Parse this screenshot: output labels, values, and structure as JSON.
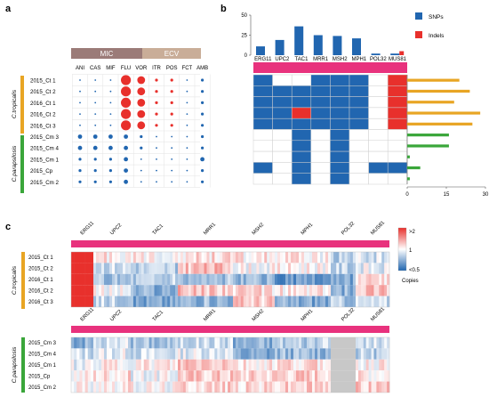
{
  "panel_labels": {
    "a": "a",
    "b": "b",
    "c": "c"
  },
  "colors": {
    "mic_header": "#9b7b78",
    "ecv_header": "#c9ad98",
    "tropicalis": "#e8a524",
    "parapsilosis": "#3aa63a",
    "snp": "#2166b0",
    "indel": "#e8302c",
    "gene_bar": "#e8327d",
    "heat_high": "#e8302c",
    "heat_mid": "#ffffff",
    "heat_low": "#2166b0",
    "missing": "#c8c8c8"
  },
  "panel_a": {
    "header_mic": "MIC",
    "header_ecv": "ECV",
    "drugs": [
      "ANI",
      "CAS",
      "MIF",
      "FLU",
      "VOR",
      "ITR",
      "POS",
      "FCT",
      "AMB"
    ],
    "species": [
      "C.tropicalis",
      "C.parapsilosis"
    ],
    "samples": [
      "2015_Ct 1",
      "2015_Ct 2",
      "2016_Ct 1",
      "2016_Ct 2",
      "2016_Ct 3",
      "2015_Cm 3",
      "2015_Cm 4",
      "2015_Cm 1",
      "2015_Cp",
      "2015_Cm 2"
    ],
    "dots": [
      [
        [
          1,
          "b"
        ],
        [
          1,
          "b"
        ],
        [
          1,
          "b"
        ],
        [
          6,
          "r"
        ],
        [
          5,
          "r"
        ],
        [
          2,
          "r"
        ],
        [
          2,
          "r"
        ],
        [
          1,
          "b"
        ],
        [
          2,
          "b"
        ]
      ],
      [
        [
          1,
          "b"
        ],
        [
          1,
          "b"
        ],
        [
          1,
          "b"
        ],
        [
          6,
          "r"
        ],
        [
          5,
          "r"
        ],
        [
          2,
          "r"
        ],
        [
          2,
          "r"
        ],
        [
          1,
          "b"
        ],
        [
          2,
          "b"
        ]
      ],
      [
        [
          1,
          "b"
        ],
        [
          1,
          "b"
        ],
        [
          1,
          "b"
        ],
        [
          6,
          "r"
        ],
        [
          5,
          "r"
        ],
        [
          2,
          "r"
        ],
        [
          2,
          "r"
        ],
        [
          1,
          "b"
        ],
        [
          2,
          "b"
        ]
      ],
      [
        [
          1,
          "b"
        ],
        [
          1,
          "b"
        ],
        [
          1,
          "b"
        ],
        [
          6,
          "r"
        ],
        [
          5,
          "r"
        ],
        [
          2,
          "r"
        ],
        [
          2,
          "r"
        ],
        [
          1,
          "b"
        ],
        [
          2,
          "b"
        ]
      ],
      [
        [
          1,
          "b"
        ],
        [
          1,
          "b"
        ],
        [
          1,
          "b"
        ],
        [
          6,
          "r"
        ],
        [
          5,
          "r"
        ],
        [
          2,
          "r"
        ],
        [
          2,
          "r"
        ],
        [
          1,
          "b"
        ],
        [
          2,
          "b"
        ]
      ],
      [
        [
          3,
          "b"
        ],
        [
          3,
          "b"
        ],
        [
          3,
          "b"
        ],
        [
          3,
          "b"
        ],
        [
          2,
          "b"
        ],
        [
          1,
          "b"
        ],
        [
          1,
          "b"
        ],
        [
          1,
          "b"
        ],
        [
          2,
          "b"
        ]
      ],
      [
        [
          3,
          "b"
        ],
        [
          3,
          "b"
        ],
        [
          3,
          "b"
        ],
        [
          3,
          "b"
        ],
        [
          2,
          "b"
        ],
        [
          1,
          "b"
        ],
        [
          1,
          "b"
        ],
        [
          1,
          "b"
        ],
        [
          2,
          "b"
        ]
      ],
      [
        [
          2,
          "b"
        ],
        [
          2,
          "b"
        ],
        [
          2,
          "b"
        ],
        [
          3,
          "b"
        ],
        [
          1,
          "b"
        ],
        [
          1,
          "b"
        ],
        [
          1,
          "b"
        ],
        [
          1,
          "b"
        ],
        [
          3,
          "b"
        ]
      ],
      [
        [
          2,
          "b"
        ],
        [
          2,
          "b"
        ],
        [
          2,
          "b"
        ],
        [
          3,
          "b"
        ],
        [
          1,
          "b"
        ],
        [
          1,
          "b"
        ],
        [
          1,
          "b"
        ],
        [
          1,
          "b"
        ],
        [
          2,
          "b"
        ]
      ],
      [
        [
          2,
          "b"
        ],
        [
          2,
          "b"
        ],
        [
          2,
          "b"
        ],
        [
          3,
          "b"
        ],
        [
          1,
          "b"
        ],
        [
          1,
          "b"
        ],
        [
          1,
          "b"
        ],
        [
          1,
          "b"
        ],
        [
          2,
          "b"
        ]
      ]
    ]
  },
  "panel_b": {
    "genes": [
      "ERG11",
      "UPC2",
      "TAC1",
      "MRR1",
      "MSH2",
      "MPH1",
      "POL32",
      "MUS81"
    ],
    "legend": {
      "snps": "SNPs",
      "indels": "Indels"
    },
    "y_ticks": [
      "0",
      "25",
      "50"
    ],
    "x_ticks": [
      "0",
      "15",
      "30"
    ],
    "grid": [
      [
        "S",
        "_",
        "_",
        "S",
        "S",
        "S",
        "_",
        "I"
      ],
      [
        "S",
        "S",
        "S",
        "S",
        "S",
        "S",
        "_",
        "I"
      ],
      [
        "S",
        "S",
        "S",
        "S",
        "S",
        "S",
        "_",
        "I"
      ],
      [
        "S",
        "S",
        "I",
        "S",
        "S",
        "S",
        "_",
        "I"
      ],
      [
        "S",
        "S",
        "S",
        "S",
        "S",
        "S",
        "_",
        "I"
      ],
      [
        "_",
        "_",
        "S",
        "_",
        "S",
        "_",
        "_",
        "_"
      ],
      [
        "_",
        "_",
        "S",
        "_",
        "S",
        "_",
        "_",
        "_"
      ],
      [
        "_",
        "_",
        "S",
        "_",
        "S",
        "_",
        "_",
        "_"
      ],
      [
        "S",
        "_",
        "S",
        "_",
        "S",
        "_",
        "S",
        "S"
      ],
      [
        "_",
        "_",
        "S",
        "_",
        "S",
        "_",
        "_",
        "_"
      ]
    ]
  },
  "chart_data": [
    {
      "type": "bar",
      "title": "",
      "categories": [
        "ERG11",
        "UPC2",
        "TAC1",
        "MRR1",
        "MSH2",
        "MPH1",
        "POL32",
        "MUS81"
      ],
      "series": [
        {
          "name": "SNPs",
          "values": [
            11,
            19,
            36,
            25,
            24,
            21,
            2,
            2
          ]
        },
        {
          "name": "Indels",
          "values": [
            0,
            0,
            0,
            0,
            0,
            0,
            0,
            5
          ]
        }
      ],
      "ylim": [
        0,
        50
      ]
    },
    {
      "type": "bar",
      "title": "",
      "categories": [
        "2015_Ct 1",
        "2015_Ct 2",
        "2016_Ct 1",
        "2016_Ct 2",
        "2016_Ct 3",
        "2015_Cm 3",
        "2015_Cm 4",
        "2015_Cm 1",
        "2015_Cp",
        "2015_Cm 2"
      ],
      "values": [
        20,
        24,
        18,
        28,
        25,
        16,
        16,
        1,
        5,
        1
      ],
      "xlim": [
        0,
        30
      ]
    }
  ],
  "panel_c": {
    "genes": [
      "ERG11",
      "UPC2",
      "TAC1",
      "MRR1",
      "MSH2",
      "MPH1",
      "POL32",
      "MUS81"
    ],
    "scale_ticks": [
      ">2",
      "1",
      "<0.5"
    ],
    "scale_label": "Copies",
    "top_samples": [
      "2015_Ct 1",
      "2015_Ct 2",
      "2016_Ct 1",
      "2016_Ct 2",
      "2016_Ct 3"
    ],
    "bottom_samples": [
      "2015_Cm 3",
      "2015_Cm 4",
      "2015_Cm 1",
      "2015_Cp",
      "2015_Cm 2"
    ]
  }
}
